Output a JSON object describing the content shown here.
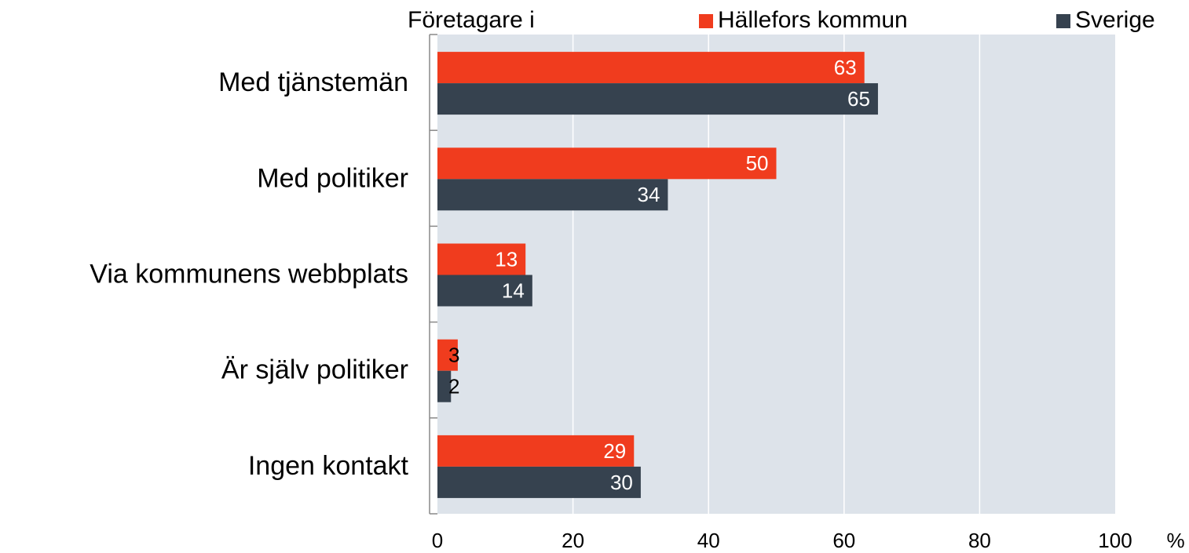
{
  "chart_data": {
    "type": "bar",
    "orientation": "horizontal",
    "legend_title": "Företagare i",
    "x_label": "%",
    "categories": [
      "Med tjänstemän",
      "Med politiker",
      "Via kommunens webbplats",
      "Är själv politiker",
      "Ingen kontakt"
    ],
    "series": [
      {
        "name": "Hällefors kommun",
        "color": "#f03c1e",
        "values": [
          63,
          50,
          13,
          3,
          29
        ]
      },
      {
        "name": "Sverige",
        "color": "#36424f",
        "values": [
          65,
          34,
          14,
          2,
          30
        ]
      }
    ],
    "xlim": [
      0,
      100
    ],
    "xticks": [
      0,
      20,
      40,
      60,
      80,
      100
    ],
    "grid": true,
    "plot_background": "#dde3ea"
  }
}
